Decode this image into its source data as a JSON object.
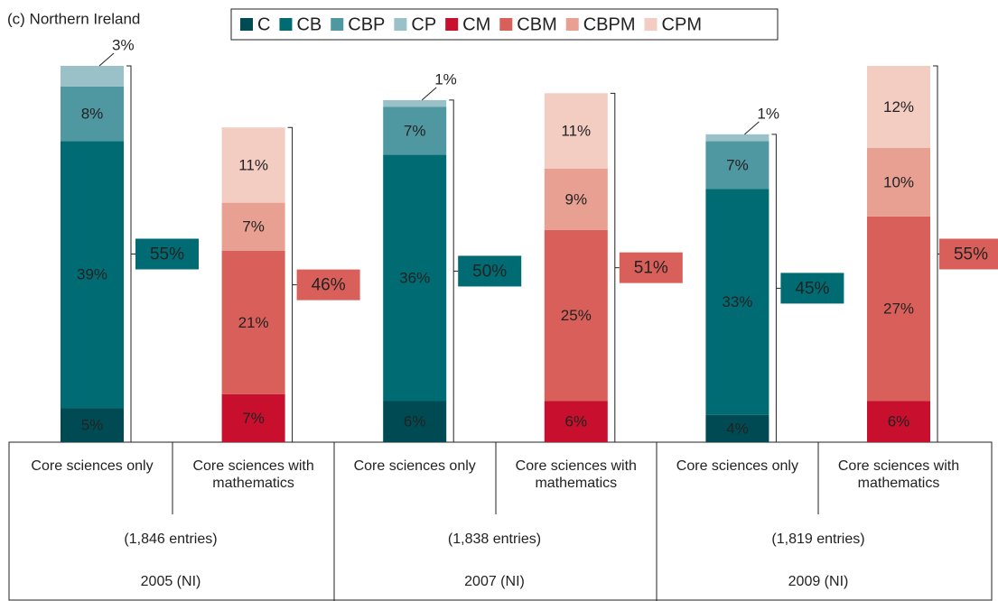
{
  "chart_data": {
    "type": "stacked_bar",
    "title": "(c) Northern Ireland",
    "categories": [
      "Core sciences only",
      "Core sciences with mathematics",
      "Core sciences only",
      "Core sciences with mathematics",
      "Core sciences only",
      "Core sciences with mathematics"
    ],
    "groups": [
      {
        "entries": "(1,846 entries)",
        "label": "2005 (NI)"
      },
      {
        "entries": "(1,838 entries)",
        "label": "2007 (NI)"
      },
      {
        "entries": "(1,819 entries)",
        "label": "2009 (NI)"
      }
    ],
    "ylim": [
      0,
      55
    ],
    "series": [
      {
        "name": "C",
        "color": "#004b53",
        "values": [
          5,
          null,
          6,
          null,
          4,
          null
        ],
        "value_labels": [
          "5%",
          null,
          "6%",
          null,
          "4%",
          null
        ]
      },
      {
        "name": "CB",
        "color": "#006b73",
        "values": [
          39,
          null,
          36,
          null,
          33,
          null
        ],
        "value_labels": [
          "39%",
          null,
          "36%",
          null,
          "33%",
          null
        ]
      },
      {
        "name": "CBP",
        "color": "#4f97a1",
        "values": [
          8,
          null,
          7,
          null,
          7,
          null
        ],
        "value_labels": [
          "8%",
          null,
          "7%",
          null,
          "7%",
          null
        ]
      },
      {
        "name": "CP",
        "color": "#9ac1c7",
        "values": [
          3,
          null,
          1,
          null,
          1,
          null
        ],
        "value_labels": [
          "3%",
          null,
          "1%",
          null,
          "1%",
          null
        ]
      },
      {
        "name": "CM",
        "color": "#c8102e",
        "values": [
          null,
          7,
          null,
          6,
          null,
          6
        ],
        "value_labels": [
          null,
          "7%",
          null,
          "6%",
          null,
          "6%"
        ]
      },
      {
        "name": "CBM",
        "color": "#d9605a",
        "values": [
          null,
          21,
          null,
          25,
          null,
          27
        ],
        "value_labels": [
          null,
          "21%",
          null,
          "25%",
          null,
          "27%"
        ]
      },
      {
        "name": "CBPM",
        "color": "#e8a092",
        "values": [
          null,
          7,
          null,
          9,
          null,
          10
        ],
        "value_labels": [
          null,
          "7%",
          null,
          "9%",
          null,
          "10%"
        ]
      },
      {
        "name": "CPM",
        "color": "#f3ccc2",
        "values": [
          null,
          11,
          null,
          11,
          null,
          12
        ],
        "value_labels": [
          null,
          "11%",
          null,
          "11%",
          null,
          "12%"
        ]
      }
    ],
    "totals": [
      55,
      46,
      50,
      51,
      45,
      55
    ],
    "total_labels": [
      "55%",
      "46%",
      "50%",
      "51%",
      "45%",
      "55%"
    ]
  }
}
